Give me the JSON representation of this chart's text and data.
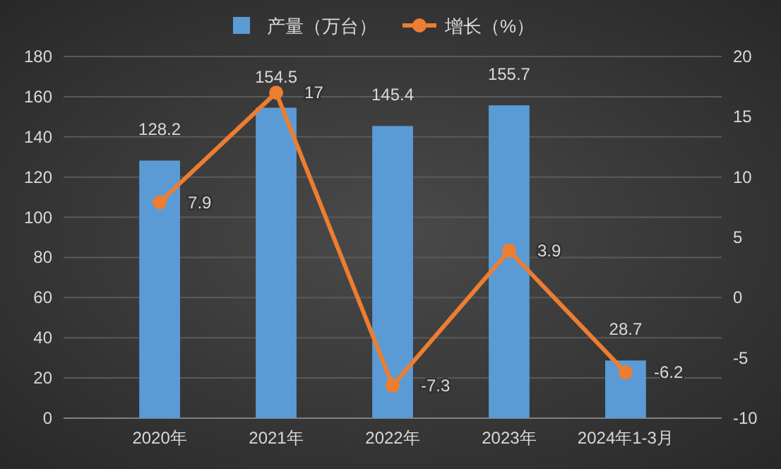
{
  "chart_data": {
    "type": "bar",
    "categories": [
      "2020年",
      "2021年",
      "2022年",
      "2023年",
      "2024年1-3月"
    ],
    "series": [
      {
        "name": "产量（万台）",
        "color": "#5b9bd5",
        "values": [
          128.2,
          154.5,
          145.4,
          155.7,
          28.7
        ]
      },
      {
        "name": "增长（%）",
        "type": "line",
        "axis": "y2",
        "color": "#ed7d31",
        "values": [
          7.9,
          17,
          -7.3,
          3.9,
          -6.2
        ]
      }
    ],
    "ylim": [
      0,
      180
    ],
    "yticks": [
      0,
      20,
      40,
      60,
      80,
      100,
      120,
      140,
      160,
      180
    ],
    "y2lim": [
      -10,
      20
    ],
    "y2ticks": [
      -10,
      -5,
      0,
      5,
      10,
      15,
      20
    ],
    "grid": "y",
    "legend": "top",
    "marker": "circle",
    "data_labels": true
  }
}
